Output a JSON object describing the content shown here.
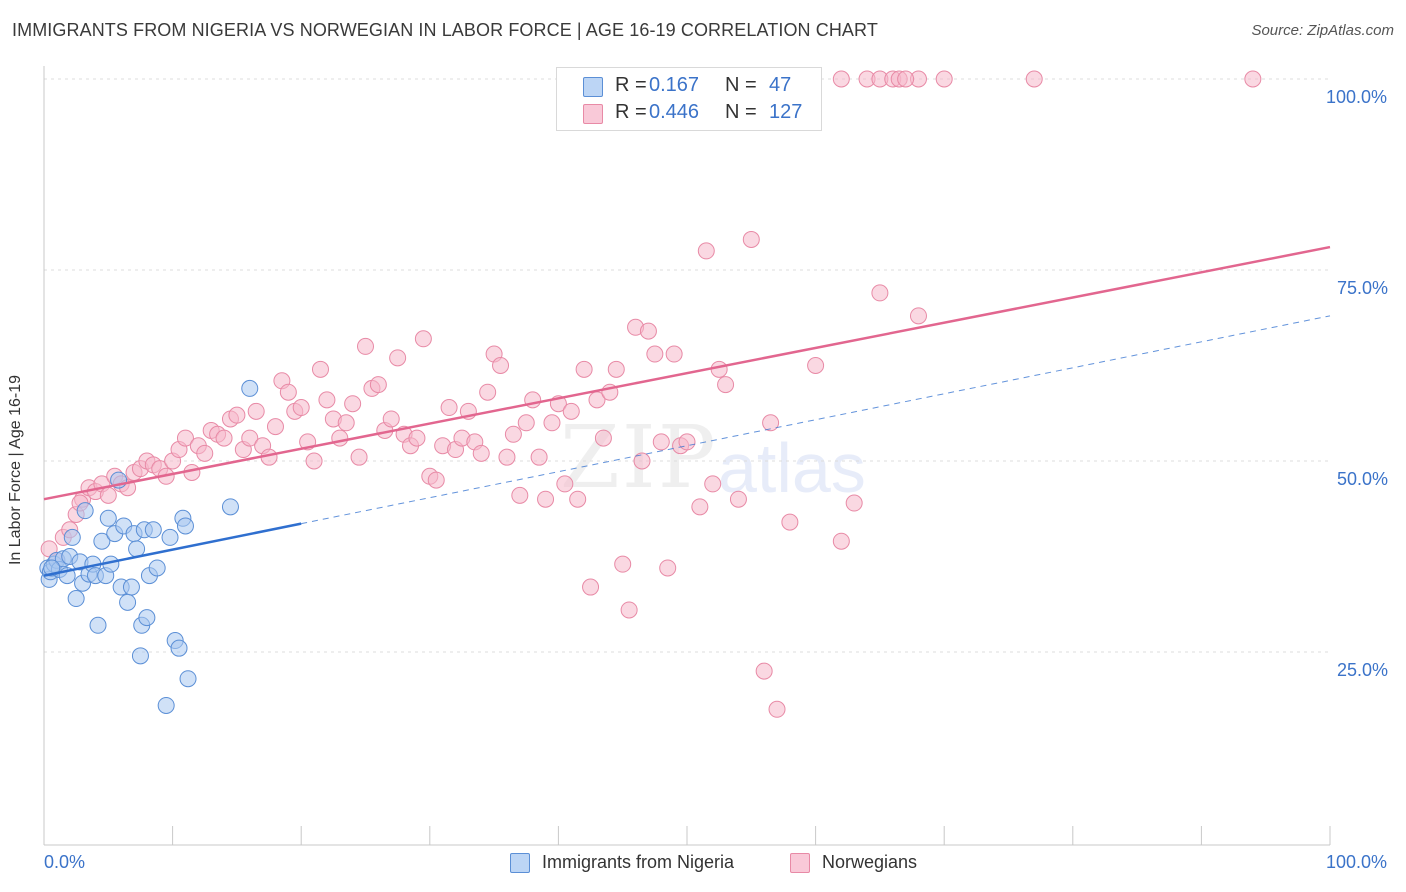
{
  "title": "IMMIGRANTS FROM NIGERIA VS NORWEGIAN IN LABOR FORCE | AGE 16-19 CORRELATION CHART",
  "source": "Source: ZipAtlas.com",
  "watermark": {
    "zip": "ZIP",
    "atlas": "atlas"
  },
  "legend_top": {
    "rows": [
      {
        "r_label": "R =",
        "r_value": "0.167",
        "n_label": "N =",
        "n_value": "47"
      },
      {
        "r_label": "R =",
        "r_value": "0.446",
        "n_label": "N =",
        "n_value": "127"
      }
    ]
  },
  "legend_bottom": {
    "nigeria": "Immigrants from Nigeria",
    "norwegians": "Norwegians"
  },
  "colors": {
    "nigeria_fill": "#a9c8f0",
    "nigeria_stroke": "#5b8fd6",
    "nigeria_line": "#2f6fcf",
    "norwegian_fill": "#f6b8cb",
    "norwegian_stroke": "#e88aa6",
    "norwegian_line": "#e2668f",
    "tick_text": "#3b73c9",
    "grid": "#dcdcdc"
  },
  "chart_data": {
    "type": "scatter",
    "title": "IMMIGRANTS FROM NIGERIA VS NORWEGIAN IN LABOR FORCE | AGE 16-19 CORRELATION CHART",
    "xlabel": "",
    "ylabel": "In Labor Force | Age 16-19",
    "xlim": [
      0,
      100
    ],
    "ylim": [
      0,
      100
    ],
    "x_tick_labels": [
      "0.0%",
      "100.0%"
    ],
    "y_tick_labels": [
      "25.0%",
      "50.0%",
      "75.0%",
      "100.0%"
    ],
    "y_ticks": [
      25,
      50,
      75,
      100
    ],
    "grid": true,
    "legend": "top-center",
    "series": [
      {
        "name": "Immigrants from Nigeria",
        "R": 0.167,
        "N": 47,
        "trend": {
          "x0": 0,
          "y0": 35.0,
          "x1": 20,
          "y1": 41.8,
          "dashed_to_x": 100,
          "dashed_to_y": 69.0
        },
        "points": [
          [
            0.3,
            36.0
          ],
          [
            0.4,
            34.5
          ],
          [
            0.5,
            35.5
          ],
          [
            0.8,
            36.5
          ],
          [
            1.0,
            37.0
          ],
          [
            1.2,
            35.8
          ],
          [
            1.5,
            37.2
          ],
          [
            1.8,
            35.0
          ],
          [
            2.0,
            37.5
          ],
          [
            2.2,
            40.0
          ],
          [
            2.5,
            32.0
          ],
          [
            2.8,
            36.8
          ],
          [
            3.0,
            34.0
          ],
          [
            3.2,
            43.5
          ],
          [
            3.5,
            35.2
          ],
          [
            3.8,
            36.5
          ],
          [
            4.0,
            35.0
          ],
          [
            4.2,
            28.5
          ],
          [
            4.5,
            39.5
          ],
          [
            4.8,
            35.0
          ],
          [
            5.0,
            42.5
          ],
          [
            5.2,
            36.5
          ],
          [
            5.5,
            40.5
          ],
          [
            5.8,
            47.5
          ],
          [
            6.0,
            33.5
          ],
          [
            6.2,
            41.5
          ],
          [
            6.5,
            31.5
          ],
          [
            6.8,
            33.5
          ],
          [
            7.0,
            40.5
          ],
          [
            7.2,
            38.5
          ],
          [
            7.5,
            24.5
          ],
          [
            7.6,
            28.5
          ],
          [
            7.8,
            41.0
          ],
          [
            8.0,
            29.5
          ],
          [
            8.2,
            35.0
          ],
          [
            8.5,
            41.0
          ],
          [
            8.8,
            36.0
          ],
          [
            9.5,
            18.0
          ],
          [
            9.8,
            40.0
          ],
          [
            10.2,
            26.5
          ],
          [
            10.5,
            25.5
          ],
          [
            10.8,
            42.5
          ],
          [
            11.0,
            41.5
          ],
          [
            11.2,
            21.5
          ],
          [
            14.5,
            44.0
          ],
          [
            16.0,
            59.5
          ],
          [
            0.6,
            36.0
          ]
        ]
      },
      {
        "name": "Norwegians",
        "R": 0.446,
        "N": 127,
        "trend": {
          "x0": 0,
          "y0": 45.0,
          "x1": 100,
          "y1": 78.0
        },
        "points": [
          [
            0.4,
            38.5
          ],
          [
            1.0,
            37.0
          ],
          [
            1.5,
            40.0
          ],
          [
            2.0,
            41.0
          ],
          [
            2.5,
            43.0
          ],
          [
            3.0,
            45.0
          ],
          [
            3.5,
            46.5
          ],
          [
            4.0,
            46.0
          ],
          [
            4.5,
            47.0
          ],
          [
            5.0,
            45.5
          ],
          [
            5.5,
            48.0
          ],
          [
            6.0,
            47.0
          ],
          [
            6.5,
            46.5
          ],
          [
            7.0,
            48.5
          ],
          [
            7.5,
            49.0
          ],
          [
            8.0,
            50.0
          ],
          [
            8.5,
            49.5
          ],
          [
            9.0,
            49.0
          ],
          [
            9.5,
            48.0
          ],
          [
            10.0,
            50.0
          ],
          [
            10.5,
            51.5
          ],
          [
            11.0,
            53.0
          ],
          [
            11.5,
            48.5
          ],
          [
            12.0,
            52.0
          ],
          [
            12.5,
            51.0
          ],
          [
            13.0,
            54.0
          ],
          [
            13.5,
            53.5
          ],
          [
            14.0,
            53.0
          ],
          [
            14.5,
            55.5
          ],
          [
            15.0,
            56.0
          ],
          [
            15.5,
            51.5
          ],
          [
            16.0,
            53.0
          ],
          [
            16.5,
            56.5
          ],
          [
            17.0,
            52.0
          ],
          [
            17.5,
            50.5
          ],
          [
            18.0,
            54.5
          ],
          [
            18.5,
            60.5
          ],
          [
            19.0,
            59.0
          ],
          [
            19.5,
            56.5
          ],
          [
            20.0,
            57.0
          ],
          [
            20.5,
            52.5
          ],
          [
            21.0,
            50.0
          ],
          [
            21.5,
            62.0
          ],
          [
            22.0,
            58.0
          ],
          [
            22.5,
            55.5
          ],
          [
            23.0,
            53.0
          ],
          [
            23.5,
            55.0
          ],
          [
            24.0,
            57.5
          ],
          [
            24.5,
            50.5
          ],
          [
            25.0,
            65.0
          ],
          [
            25.5,
            59.5
          ],
          [
            26.0,
            60.0
          ],
          [
            26.5,
            54.0
          ],
          [
            27.0,
            55.5
          ],
          [
            27.5,
            63.5
          ],
          [
            28.0,
            53.5
          ],
          [
            28.5,
            52.0
          ],
          [
            29.0,
            53.0
          ],
          [
            29.5,
            66.0
          ],
          [
            30.0,
            48.0
          ],
          [
            30.5,
            47.5
          ],
          [
            31.0,
            52.0
          ],
          [
            31.5,
            57.0
          ],
          [
            32.0,
            51.5
          ],
          [
            32.5,
            53.0
          ],
          [
            33.0,
            56.5
          ],
          [
            33.5,
            52.5
          ],
          [
            34.0,
            51.0
          ],
          [
            34.5,
            59.0
          ],
          [
            35.0,
            64.0
          ],
          [
            35.5,
            62.5
          ],
          [
            36.0,
            50.5
          ],
          [
            36.5,
            53.5
          ],
          [
            37.0,
            45.5
          ],
          [
            37.5,
            55.0
          ],
          [
            38.0,
            58.0
          ],
          [
            38.5,
            50.5
          ],
          [
            39.0,
            45.0
          ],
          [
            39.5,
            55.0
          ],
          [
            40.0,
            57.5
          ],
          [
            40.5,
            47.0
          ],
          [
            41.0,
            56.5
          ],
          [
            41.5,
            45.0
          ],
          [
            42.0,
            62.0
          ],
          [
            42.5,
            33.5
          ],
          [
            43.0,
            58.0
          ],
          [
            43.5,
            53.0
          ],
          [
            44.0,
            59.0
          ],
          [
            44.5,
            62.0
          ],
          [
            45.0,
            36.5
          ],
          [
            45.5,
            30.5
          ],
          [
            46.0,
            67.5
          ],
          [
            46.5,
            50.0
          ],
          [
            47.0,
            67.0
          ],
          [
            47.5,
            64.0
          ],
          [
            48.0,
            52.5
          ],
          [
            48.5,
            36.0
          ],
          [
            49.0,
            64.0
          ],
          [
            49.5,
            52.0
          ],
          [
            50.0,
            52.5
          ],
          [
            51.0,
            44.0
          ],
          [
            51.5,
            77.5
          ],
          [
            52.0,
            47.0
          ],
          [
            52.5,
            62.0
          ],
          [
            53.0,
            60.0
          ],
          [
            54.0,
            45.0
          ],
          [
            55.0,
            79.0
          ],
          [
            56.0,
            22.5
          ],
          [
            56.5,
            55.0
          ],
          [
            57.0,
            17.5
          ],
          [
            58.0,
            42.0
          ],
          [
            60.0,
            62.5
          ],
          [
            62.0,
            39.5
          ],
          [
            63.0,
            44.5
          ],
          [
            65.0,
            72.0
          ],
          [
            68.0,
            69.0
          ],
          [
            62.0,
            100.0
          ],
          [
            64.0,
            100.0
          ],
          [
            65.0,
            100.0
          ],
          [
            66.0,
            100.0
          ],
          [
            68.0,
            100.0
          ],
          [
            70.0,
            100.0
          ],
          [
            77.0,
            100.0
          ],
          [
            94.0,
            100.0
          ],
          [
            66.5,
            100.0
          ],
          [
            67.0,
            100.0
          ],
          [
            2.8,
            44.5
          ]
        ]
      }
    ]
  }
}
